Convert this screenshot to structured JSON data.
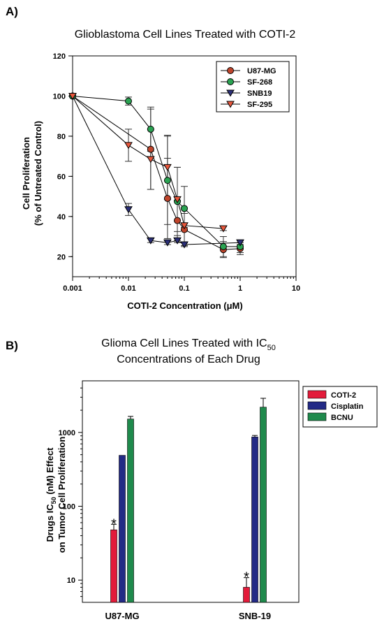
{
  "panel_a": {
    "label": "A)"
  },
  "panel_b": {
    "label": "B)"
  },
  "colors": {
    "axis": "#000000",
    "error_bar": "#333333",
    "line": "#000000",
    "u87mg": "#c0452c",
    "sf268": "#2aa352",
    "snb19": "#2b2f78",
    "sf295": "#e8573c",
    "coti2": "#e31b3a",
    "cisplatin": "#232a86",
    "bcnu": "#1f8a4c"
  },
  "chart_data": [
    {
      "type": "line",
      "title": "Glioblastoma Cell Lines Treated with COTI-2",
      "xlabel": "COTI-2 Concentration (μM)",
      "ylabel_line1": "Cell Proliferation",
      "ylabel_line2": "(% of Untreated Control)",
      "xscale": "log",
      "xlim": [
        0.001,
        10
      ],
      "ylim": [
        10,
        120
      ],
      "xticks": [
        0.001,
        0.01,
        0.1,
        1,
        10
      ],
      "xtick_labels": [
        "0.001",
        "0.01",
        "0.1",
        "1",
        "10"
      ],
      "yticks": [
        20,
        40,
        60,
        80,
        100,
        120
      ],
      "ytick_labels": [
        "20",
        "40",
        "60",
        "80",
        "100",
        "120"
      ],
      "legend_position": "top-right",
      "series": [
        {
          "name": "U87-MG",
          "marker": "circle",
          "color_key": "u87mg",
          "x": [
            0.001,
            0.025,
            0.05,
            0.075,
            0.1,
            0.5,
            1
          ],
          "y": [
            100,
            73.5,
            49,
            38,
            33.5,
            23.5,
            24
          ],
          "err": [
            0,
            20,
            20,
            10,
            8,
            4,
            3
          ]
        },
        {
          "name": "SF-268",
          "marker": "circle",
          "color_key": "sf268",
          "x": [
            0.001,
            0.01,
            0.025,
            0.05,
            0.075,
            0.1,
            0.5,
            1
          ],
          "y": [
            100,
            97.5,
            83.5,
            58,
            47.5,
            44,
            25,
            25
          ],
          "err": [
            0,
            2,
            11,
            22,
            17,
            11,
            5,
            3
          ]
        },
        {
          "name": "SNB19",
          "marker": "triangle-down",
          "color_key": "snb19",
          "x": [
            0.001,
            0.01,
            0.025,
            0.05,
            0.075,
            0.1,
            1
          ],
          "y": [
            100,
            43.5,
            28,
            27,
            28,
            26,
            27
          ],
          "err": [
            0,
            3,
            1,
            1,
            1,
            1,
            1
          ]
        },
        {
          "name": "SF-295",
          "marker": "triangle-down",
          "color_key": "sf295",
          "x": [
            0.001,
            0.01,
            0.025,
            0.05,
            0.075,
            0.1,
            0.5
          ],
          "y": [
            100,
            75.5,
            68.5,
            64.5,
            48.5,
            35.5,
            34
          ],
          "err": [
            0,
            8,
            15,
            16,
            16,
            1,
            1
          ]
        }
      ]
    },
    {
      "type": "bar",
      "title_line1_main": "Glioma Cell Lines Treated with IC",
      "title_line1_sub": "50",
      "title_line2": "Concentrations of Each Drug",
      "ylabel_line1_pre": "Drugs IC",
      "ylabel_line1_sub": "50",
      "ylabel_line1_post": " (nM) Effect",
      "ylabel_line2": "on Tumor Cell Proliferation",
      "yscale": "log",
      "ylim": [
        5,
        5000
      ],
      "yticks": [
        10,
        100,
        1000
      ],
      "ytick_labels": [
        "10",
        "100",
        "1000"
      ],
      "legend_position": "top-right",
      "categories": [
        "U87-MG",
        "SNB-19"
      ],
      "series": [
        {
          "name": "COTI-2",
          "color_key": "coti2",
          "values": [
            48,
            8
          ],
          "err": [
            9,
            2.8
          ],
          "significant": [
            "*",
            "*"
          ]
        },
        {
          "name": "Cisplatin",
          "color_key": "cisplatin",
          "values": [
            490,
            870
          ],
          "err": [
            0,
            40
          ],
          "significant": [
            "",
            ""
          ]
        },
        {
          "name": "BCNU",
          "color_key": "bcnu",
          "values": [
            1520,
            2200
          ],
          "err": [
            130,
            700
          ],
          "significant": [
            "",
            ""
          ]
        }
      ]
    }
  ]
}
